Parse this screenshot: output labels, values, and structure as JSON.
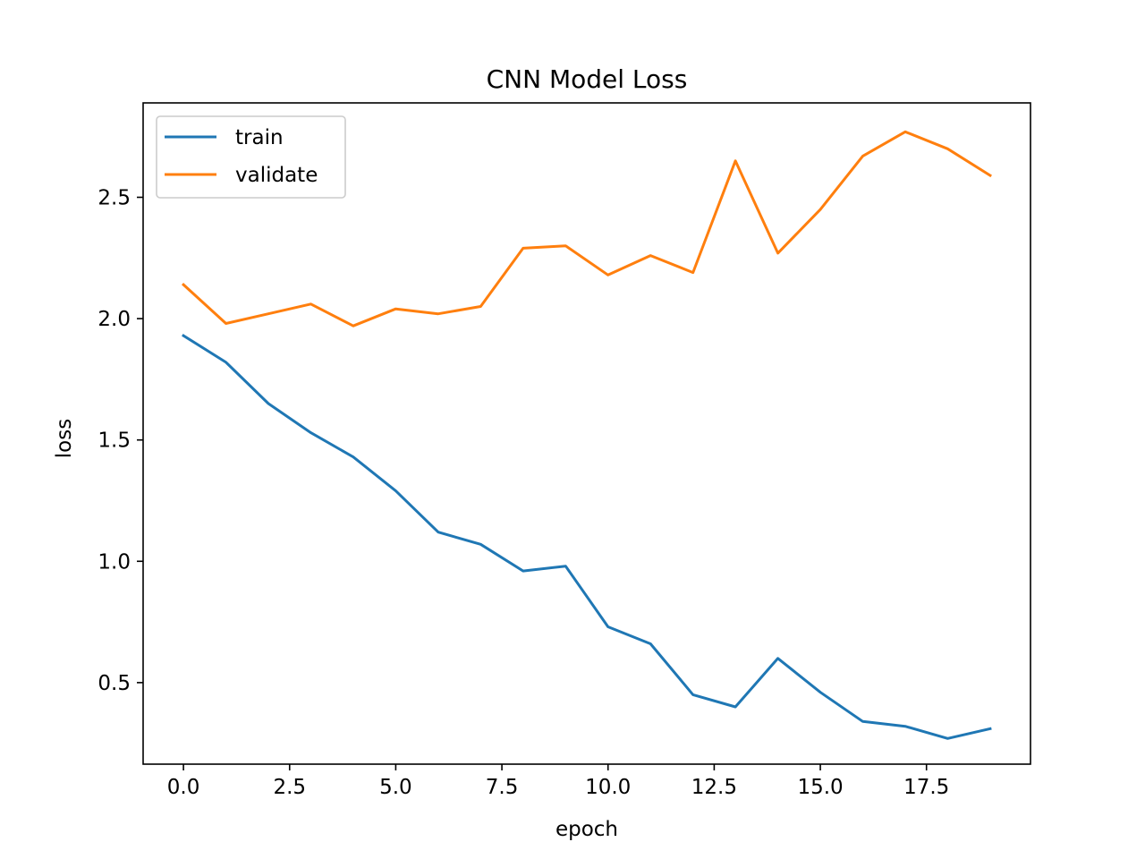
{
  "chart_data": {
    "type": "line",
    "title": "CNN Model Loss",
    "xlabel": "epoch",
    "ylabel": "loss",
    "xlim": [
      -0.95,
      19.95
    ],
    "ylim": [
      0.164,
      2.889
    ],
    "xticks": [
      0.0,
      2.5,
      5.0,
      7.5,
      10.0,
      12.5,
      15.0,
      17.5
    ],
    "xtick_labels": [
      "0.0",
      "2.5",
      "5.0",
      "7.5",
      "10.0",
      "12.5",
      "15.0",
      "17.5"
    ],
    "yticks": [
      0.5,
      1.0,
      1.5,
      2.0,
      2.5
    ],
    "ytick_labels": [
      "0.5",
      "1.0",
      "1.5",
      "2.0",
      "2.5"
    ],
    "grid": false,
    "legend_position": "upper-left",
    "x": [
      0,
      1,
      2,
      3,
      4,
      5,
      6,
      7,
      8,
      9,
      10,
      11,
      12,
      13,
      14,
      15,
      16,
      17,
      18,
      19
    ],
    "series": [
      {
        "name": "train",
        "color": "#1f77b4",
        "values": [
          1.93,
          1.82,
          1.65,
          1.53,
          1.43,
          1.29,
          1.12,
          1.07,
          0.96,
          0.98,
          0.73,
          0.66,
          0.45,
          0.4,
          0.6,
          0.46,
          0.34,
          0.32,
          0.27,
          0.31
        ]
      },
      {
        "name": "validate",
        "color": "#ff7f0e",
        "values": [
          2.14,
          1.98,
          2.02,
          2.06,
          1.97,
          2.04,
          2.02,
          2.05,
          2.29,
          2.3,
          2.18,
          2.26,
          2.19,
          2.65,
          2.27,
          2.45,
          2.67,
          2.77,
          2.7,
          2.59
        ]
      }
    ]
  }
}
